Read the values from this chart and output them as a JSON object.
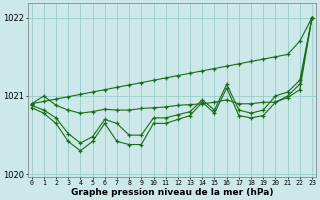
{
  "x": [
    0,
    1,
    2,
    3,
    4,
    5,
    6,
    7,
    8,
    9,
    10,
    11,
    12,
    13,
    14,
    15,
    16,
    17,
    18,
    19,
    20,
    21,
    22,
    23
  ],
  "line_trend": [
    1020.9,
    1020.93,
    1020.96,
    1020.99,
    1021.02,
    1021.05,
    1021.08,
    1021.11,
    1021.14,
    1021.17,
    1021.2,
    1021.23,
    1021.26,
    1021.29,
    1021.32,
    1021.35,
    1021.38,
    1021.41,
    1021.44,
    1021.47,
    1021.5,
    1021.53,
    1021.7,
    1022.0
  ],
  "line_smooth": [
    1020.9,
    1021.0,
    1020.88,
    1020.82,
    1020.78,
    1020.8,
    1020.83,
    1020.82,
    1020.82,
    1020.84,
    1020.85,
    1020.86,
    1020.88,
    1020.89,
    1020.9,
    1020.92,
    1020.95,
    1020.9,
    1020.9,
    1020.92,
    1020.92,
    1021.0,
    1021.15,
    1022.0
  ],
  "line_mid": [
    1020.88,
    1020.82,
    1020.72,
    1020.52,
    1020.4,
    1020.48,
    1020.7,
    1020.65,
    1020.5,
    1020.5,
    1020.72,
    1020.72,
    1020.76,
    1020.8,
    1020.95,
    1020.82,
    1021.15,
    1020.82,
    1020.78,
    1020.82,
    1021.0,
    1021.05,
    1021.2,
    1022.0
  ],
  "line_low": [
    1020.85,
    1020.78,
    1020.65,
    1020.42,
    1020.3,
    1020.42,
    1020.65,
    1020.42,
    1020.38,
    1020.38,
    1020.65,
    1020.65,
    1020.7,
    1020.75,
    1020.92,
    1020.78,
    1021.1,
    1020.75,
    1020.72,
    1020.75,
    1020.92,
    1020.98,
    1021.08,
    1022.0
  ],
  "bg_color": "#cce8e8",
  "grid_color": "#99cccc",
  "line_color": "#1a6b1a",
  "xlabel": "Graphe pression niveau de la mer (hPa)",
  "ylim_min": 1019.97,
  "ylim_max": 1022.18,
  "yticks": [
    1020,
    1021,
    1022
  ],
  "xticks": [
    0,
    1,
    2,
    3,
    4,
    5,
    6,
    7,
    8,
    9,
    10,
    11,
    12,
    13,
    14,
    15,
    16,
    17,
    18,
    19,
    20,
    21,
    22,
    23
  ]
}
